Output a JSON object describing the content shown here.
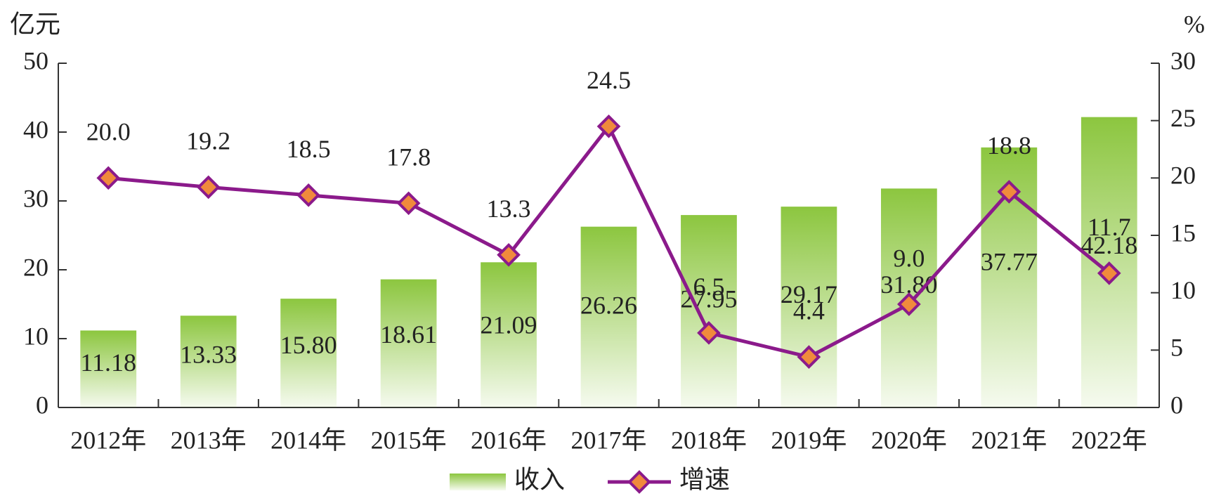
{
  "chart_data": {
    "type": "bar_line",
    "y_label": "亿元",
    "y2_label": "%",
    "categories": [
      "2012年",
      "2013年",
      "2014年",
      "2015年",
      "2016年",
      "2017年",
      "2018年",
      "2019年",
      "2020年",
      "2021年",
      "2022年"
    ],
    "series": [
      {
        "name": "收入",
        "type": "bar",
        "color": "#8cc63f",
        "values": [
          11.18,
          13.33,
          15.8,
          18.61,
          21.09,
          26.26,
          27.95,
          29.17,
          31.8,
          37.77,
          42.18
        ],
        "value_labels": [
          "11.18",
          "13.33",
          "15.80",
          "18.61",
          "21.09",
          "26.26",
          "27.95",
          "29.17",
          "31.80",
          "37.77",
          "42.18"
        ]
      },
      {
        "name": "增速",
        "type": "line",
        "axis": "y2",
        "color": "#8b1a8b",
        "marker_color": "#f08a3c",
        "values": [
          20.0,
          19.2,
          18.5,
          17.8,
          13.3,
          24.5,
          6.5,
          4.4,
          9.0,
          18.8,
          11.7
        ],
        "value_labels": [
          "20.0",
          "19.2",
          "18.5",
          "17.8",
          "13.3",
          "24.5",
          "6.5",
          "4.4",
          "9.0",
          "18.8",
          "11.7"
        ]
      }
    ],
    "ylim": [
      0,
      50
    ],
    "yticks": [
      0,
      10,
      20,
      30,
      40,
      50
    ],
    "y2lim": [
      0,
      30
    ],
    "y2ticks": [
      0,
      5,
      10,
      15,
      20,
      25,
      30
    ]
  }
}
